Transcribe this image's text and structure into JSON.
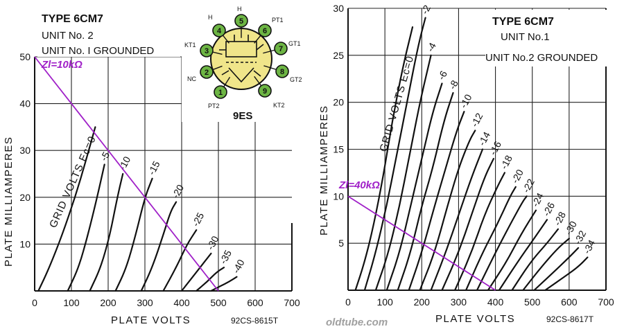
{
  "watermark": "oldtube.com",
  "charts": [
    {
      "title": "TYPE 6CM7",
      "unit_line": "UNIT No. 2",
      "grounded_line": "UNIT No. I GROUNDED",
      "xlabel": "PLATE VOLTS",
      "ylabel": "PLATE MILLIAMPERES",
      "code": "92CS-8615T",
      "grid_label": "GRID VOLTS Ec=0",
      "load_line_label": "Zl=10kΩ",
      "load_line_color": "#a020c8"
    },
    {
      "title": "TYPE 6CM7",
      "unit_line": "UNIT No.1",
      "grounded_line": "UNIT No.2 GROUNDED",
      "xlabel": "PLATE VOLTS",
      "ylabel": "PLATE MILLIAMPERES",
      "code": "92CS-8617T",
      "grid_label": "GRID VOLTS Ec=0",
      "load_line_label": "Zl=40kΩ",
      "load_line_color": "#a020c8"
    }
  ],
  "chart_data": [
    {
      "type": "line",
      "title": "TYPE 6CM7",
      "xlabel": "PLATE VOLTS",
      "ylabel": "PLATE MILLIAMPERES",
      "xlim": [
        0,
        700
      ],
      "ylim": [
        0,
        50
      ],
      "x_ticks": [
        0,
        100,
        200,
        300,
        400,
        500,
        600,
        700
      ],
      "y_ticks": [
        10,
        20,
        30,
        40,
        50
      ],
      "grid": true,
      "series": [
        {
          "name": "0",
          "values": [
            [
              10,
              0
            ],
            [
              40,
              5
            ],
            [
              75,
              12
            ],
            [
              110,
              20
            ],
            [
              140,
              28
            ],
            [
              165,
              35
            ]
          ]
        },
        {
          "name": "-5",
          "values": [
            [
              90,
              0
            ],
            [
              120,
              5
            ],
            [
              145,
              12
            ],
            [
              170,
              20
            ],
            [
              190,
              27
            ]
          ]
        },
        {
          "name": "-10",
          "values": [
            [
              150,
              0
            ],
            [
              180,
              5
            ],
            [
              205,
              12
            ],
            [
              225,
              20
            ],
            [
              240,
              25
            ]
          ]
        },
        {
          "name": "-15",
          "values": [
            [
              220,
              0
            ],
            [
              250,
              5
            ],
            [
              275,
              12
            ],
            [
              300,
              20
            ],
            [
              320,
              24
            ]
          ]
        },
        {
          "name": "-20",
          "values": [
            [
              290,
              0
            ],
            [
              320,
              5
            ],
            [
              350,
              12
            ],
            [
              370,
              17
            ],
            [
              385,
              19
            ]
          ]
        },
        {
          "name": "-25",
          "values": [
            [
              350,
              0
            ],
            [
              385,
              5
            ],
            [
              415,
              10
            ],
            [
              440,
              13
            ]
          ]
        },
        {
          "name": "-30",
          "values": [
            [
              400,
              0
            ],
            [
              430,
              3
            ],
            [
              460,
              6
            ],
            [
              480,
              8
            ]
          ]
        },
        {
          "name": "-35",
          "values": [
            [
              440,
              0
            ],
            [
              470,
              2
            ],
            [
              495,
              4
            ],
            [
              515,
              5
            ]
          ]
        },
        {
          "name": "-40",
          "values": [
            [
              480,
              0
            ],
            [
              505,
              1
            ],
            [
              530,
              2
            ],
            [
              550,
              3
            ]
          ]
        }
      ],
      "load_line": {
        "label": "Zl=10kΩ",
        "from": [
          0,
          50
        ],
        "to": [
          500,
          0
        ]
      }
    },
    {
      "type": "line",
      "title": "TYPE 6CM7",
      "xlabel": "PLATE VOLTS",
      "ylabel": "PLATE MILLIAMPERES",
      "xlim": [
        0,
        700
      ],
      "ylim": [
        0,
        30
      ],
      "x_ticks": [
        0,
        100,
        200,
        300,
        400,
        500,
        600,
        700
      ],
      "y_ticks": [
        5,
        10,
        15,
        20,
        25,
        30
      ],
      "grid": true,
      "series": [
        {
          "name": "0",
          "values": [
            [
              20,
              0
            ],
            [
              45,
              3
            ],
            [
              70,
              7
            ],
            [
              95,
              12
            ],
            [
              120,
              18
            ],
            [
              150,
              24
            ],
            [
              175,
              28
            ]
          ]
        },
        {
          "name": "-2",
          "values": [
            [
              45,
              0
            ],
            [
              75,
              4
            ],
            [
              105,
              9
            ],
            [
              130,
              14
            ],
            [
              160,
              20
            ],
            [
              190,
              26
            ],
            [
              210,
              29
            ]
          ]
        },
        {
          "name": "-4",
          "values": [
            [
              75,
              0
            ],
            [
              110,
              4
            ],
            [
              140,
              9
            ],
            [
              165,
              14
            ],
            [
              195,
              20
            ],
            [
              225,
              25
            ]
          ]
        },
        {
          "name": "-6",
          "values": [
            [
              105,
              0
            ],
            [
              140,
              4
            ],
            [
              170,
              9
            ],
            [
              200,
              14
            ],
            [
              230,
              19
            ],
            [
              255,
              22
            ]
          ]
        },
        {
          "name": "-8",
          "values": [
            [
              135,
              0
            ],
            [
              170,
              4
            ],
            [
              200,
              9
            ],
            [
              230,
              13
            ],
            [
              260,
              18
            ],
            [
              285,
              21
            ]
          ]
        },
        {
          "name": "-10",
          "values": [
            [
              165,
              0
            ],
            [
              200,
              4
            ],
            [
              235,
              9
            ],
            [
              265,
              13
            ],
            [
              295,
              17
            ],
            [
              315,
              19
            ]
          ]
        },
        {
          "name": "-12",
          "values": [
            [
              195,
              0
            ],
            [
              235,
              4
            ],
            [
              270,
              9
            ],
            [
              300,
              13
            ],
            [
              330,
              16
            ],
            [
              345,
              17
            ]
          ]
        },
        {
          "name": "-14",
          "values": [
            [
              225,
              0
            ],
            [
              265,
              4
            ],
            [
              300,
              8
            ],
            [
              335,
              12
            ],
            [
              365,
              15
            ]
          ]
        },
        {
          "name": "-16",
          "values": [
            [
              255,
              0
            ],
            [
              300,
              4
            ],
            [
              335,
              8
            ],
            [
              370,
              12
            ],
            [
              395,
              14
            ]
          ]
        },
        {
          "name": "-18",
          "values": [
            [
              290,
              0
            ],
            [
              335,
              4
            ],
            [
              370,
              8
            ],
            [
              405,
              11
            ],
            [
              425,
              12.5
            ]
          ]
        },
        {
          "name": "-20",
          "values": [
            [
              320,
              0
            ],
            [
              365,
              4
            ],
            [
              405,
              7
            ],
            [
              440,
              10
            ],
            [
              455,
              11
            ]
          ]
        },
        {
          "name": "-22",
          "values": [
            [
              350,
              0
            ],
            [
              400,
              4
            ],
            [
              440,
              7
            ],
            [
              475,
              9.5
            ],
            [
              485,
              10
            ]
          ]
        },
        {
          "name": "-24",
          "values": [
            [
              380,
              0
            ],
            [
              430,
              3
            ],
            [
              470,
              6
            ],
            [
              510,
              8.5
            ]
          ]
        },
        {
          "name": "-26",
          "values": [
            [
              410,
              0
            ],
            [
              460,
              3
            ],
            [
              505,
              5.5
            ],
            [
              540,
              7.5
            ]
          ]
        },
        {
          "name": "-28",
          "values": [
            [
              445,
              0
            ],
            [
              495,
              3
            ],
            [
              540,
              5
            ],
            [
              570,
              6.5
            ]
          ]
        },
        {
          "name": "-30",
          "values": [
            [
              475,
              0
            ],
            [
              525,
              2.5
            ],
            [
              570,
              4.5
            ],
            [
              600,
              5.5
            ]
          ]
        },
        {
          "name": "-32",
          "values": [
            [
              505,
              0
            ],
            [
              560,
              2
            ],
            [
              600,
              3.5
            ],
            [
              625,
              4.5
            ]
          ]
        },
        {
          "name": "-34",
          "values": [
            [
              535,
              0
            ],
            [
              590,
              1.5
            ],
            [
              625,
              2.5
            ],
            [
              650,
              3.5
            ]
          ]
        }
      ],
      "load_line": {
        "label": "Zl=40kΩ",
        "from": [
          0,
          10
        ],
        "to": [
          400,
          0
        ]
      }
    }
  ],
  "base_diagram": {
    "label": "9ES",
    "pins": [
      {
        "num": "1",
        "name": "PT2"
      },
      {
        "num": "2",
        "name": "NC"
      },
      {
        "num": "3",
        "name": "KT1"
      },
      {
        "num": "4",
        "name": "H"
      },
      {
        "num": "5",
        "name": "H"
      },
      {
        "num": "6",
        "name": "PT1"
      },
      {
        "num": "7",
        "name": "GT1"
      },
      {
        "num": "8",
        "name": "GT2"
      },
      {
        "num": "9",
        "name": "KT2"
      }
    ],
    "pin_color": "#6db544",
    "envelope_color": "#f0e58a"
  }
}
